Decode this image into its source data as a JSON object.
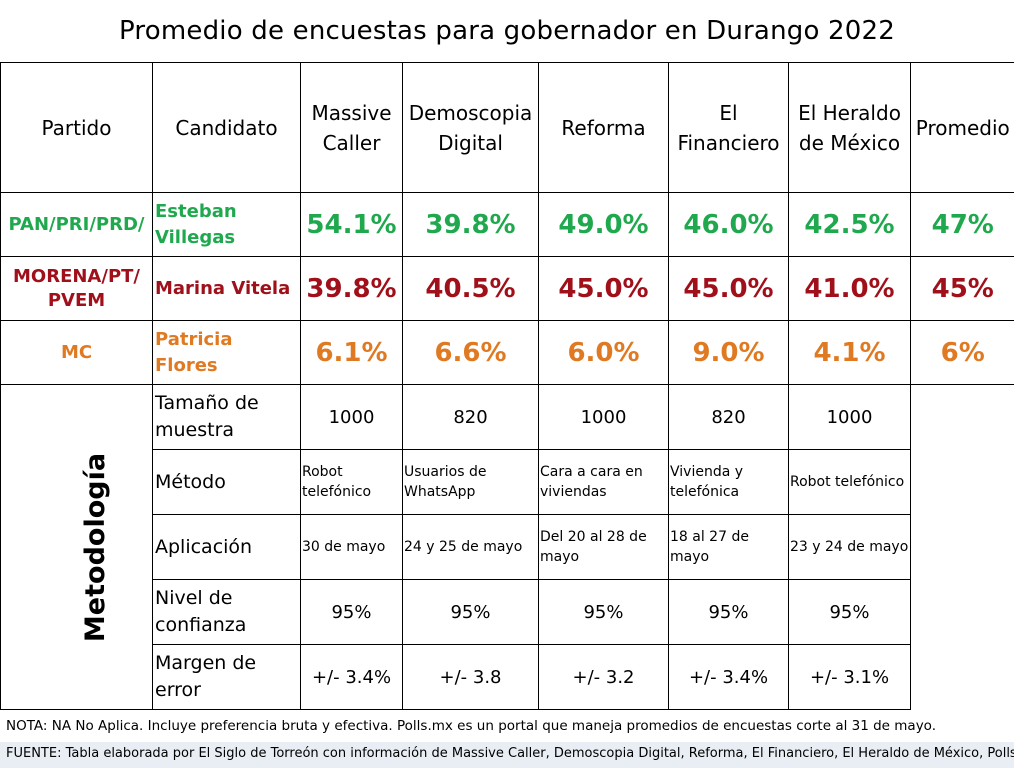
{
  "title": "Promedio de encuestas para gobernador en Durango 2022",
  "header": {
    "partido": "Partido",
    "candidato": "Candidato",
    "pollsters": [
      [
        "Massive",
        "Caller"
      ],
      [
        "Demoscopia",
        "Digital"
      ],
      [
        "Reforma",
        ""
      ],
      [
        "El",
        "Financiero"
      ],
      [
        "El Heraldo",
        "de México"
      ],
      [
        "Promedio",
        ""
      ]
    ]
  },
  "rows": [
    {
      "party": [
        "PAN/PRI/PRD/"
      ],
      "candidate": [
        "Esteban",
        "Villegas"
      ],
      "values": [
        "54.1%",
        "39.8%",
        "49.0%",
        "46.0%",
        "42.5%",
        "47%"
      ],
      "color": "#1fa84e"
    },
    {
      "party": [
        "MORENA/PT/",
        "PVEM"
      ],
      "candidate": [
        "Marina Vitela"
      ],
      "values": [
        "39.8%",
        "40.5%",
        "45.0%",
        "45.0%",
        "41.0%",
        "45%"
      ],
      "color": "#a0101a"
    },
    {
      "party": [
        "MC"
      ],
      "candidate": [
        "Patricia Flores"
      ],
      "values": [
        "6.1%",
        "6.6%",
        "6.0%",
        "9.0%",
        "4.1%",
        "6%"
      ],
      "color": "#e07a22"
    }
  ],
  "methodology": {
    "label": "Metodología",
    "rows": [
      {
        "label": [
          "Tamaño de",
          "muestra"
        ],
        "values": [
          [
            "1000"
          ],
          [
            "820"
          ],
          [
            "1000"
          ],
          [
            "820"
          ],
          [
            "1000"
          ]
        ]
      },
      {
        "label": [
          "Método"
        ],
        "values": [
          [
            "Robot",
            "telefónico"
          ],
          [
            "Usuarios de",
            "WhatsApp"
          ],
          [
            "Cara a cara en",
            "viviendas"
          ],
          [
            "Vivienda y",
            "telefónica"
          ],
          [
            "Robot telefónico"
          ]
        ]
      },
      {
        "label": [
          "Aplicación"
        ],
        "values": [
          [
            "30 de mayo"
          ],
          [
            "24 y 25 de mayo"
          ],
          [
            "Del 20 al 28 de",
            "mayo"
          ],
          [
            "18 al 27 de mayo"
          ],
          [
            "23 y 24 de mayo"
          ]
        ]
      },
      {
        "label": [
          "Nivel de",
          "confianza"
        ],
        "values": [
          [
            "95%"
          ],
          [
            "95%"
          ],
          [
            "95%"
          ],
          [
            "95%"
          ],
          [
            "95%"
          ]
        ]
      },
      {
        "label": [
          "Margen de",
          "error"
        ],
        "values": [
          [
            "+/- 3.4%"
          ],
          [
            "+/- 3.8"
          ],
          [
            "+/- 3.2"
          ],
          [
            "+/- 3.4%"
          ],
          [
            "+/- 3.1%"
          ]
        ]
      }
    ]
  },
  "note": "NOTA: NA No Aplica. Incluye preferencia bruta y efectiva. Polls.mx es un portal que maneja promedios de encuestas corte al 31 de mayo.",
  "source": "FUENTE: Tabla elaborada por El Siglo de Torreón con información de Massive Caller, Demoscopia Digital, Reforma, El Financiero, El Heraldo de México, Polls.mx"
}
